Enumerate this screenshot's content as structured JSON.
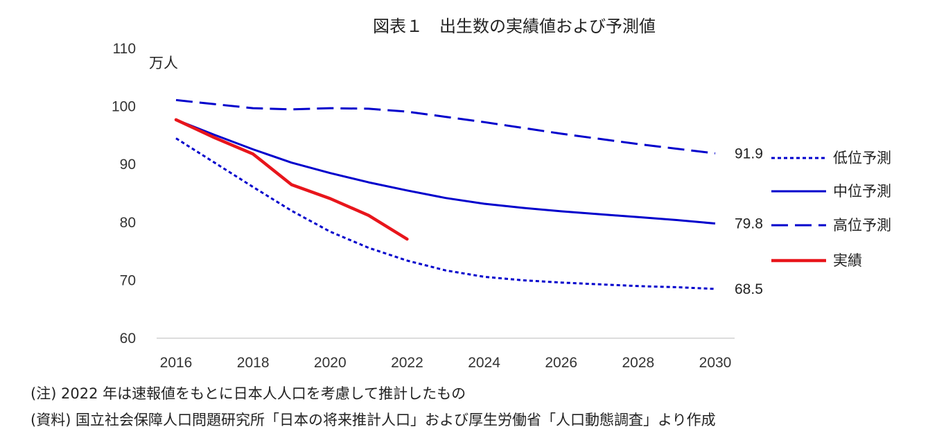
{
  "chart_data": {
    "type": "line",
    "title": "図表１　出生数の実績値および予測値",
    "unit_label": "万人",
    "ylim": [
      60,
      110
    ],
    "yticks": [
      60,
      70,
      80,
      90,
      100,
      110
    ],
    "xlim": [
      2016,
      2030
    ],
    "xticks": [
      2016,
      2018,
      2020,
      2022,
      2024,
      2026,
      2028,
      2030
    ],
    "grid": false,
    "legend_position": "right",
    "series": [
      {
        "name": "低位予測",
        "color": "#0000cc",
        "style": "dotted",
        "points": [
          [
            2016,
            94.5
          ],
          [
            2017,
            90.3
          ],
          [
            2018,
            86.1
          ],
          [
            2019,
            82.0
          ],
          [
            2020,
            78.4
          ],
          [
            2021,
            75.6
          ],
          [
            2022,
            73.4
          ],
          [
            2023,
            71.7
          ],
          [
            2024,
            70.6
          ],
          [
            2025,
            70.0
          ],
          [
            2026,
            69.6
          ],
          [
            2027,
            69.3
          ],
          [
            2028,
            69.0
          ],
          [
            2029,
            68.8
          ],
          [
            2030,
            68.5
          ]
        ],
        "end_label": "68.5"
      },
      {
        "name": "中位予測",
        "color": "#0000cc",
        "style": "solid",
        "points": [
          [
            2016,
            97.7
          ],
          [
            2017,
            95.1
          ],
          [
            2018,
            92.6
          ],
          [
            2019,
            90.3
          ],
          [
            2020,
            88.5
          ],
          [
            2021,
            86.9
          ],
          [
            2022,
            85.5
          ],
          [
            2023,
            84.2
          ],
          [
            2024,
            83.2
          ],
          [
            2025,
            82.5
          ],
          [
            2026,
            81.9
          ],
          [
            2027,
            81.4
          ],
          [
            2028,
            80.9
          ],
          [
            2029,
            80.4
          ],
          [
            2030,
            79.8
          ]
        ],
        "end_label": "79.8"
      },
      {
        "name": "高位予測",
        "color": "#0000cc",
        "style": "dashed",
        "points": [
          [
            2016,
            101.1
          ],
          [
            2017,
            100.4
          ],
          [
            2018,
            99.7
          ],
          [
            2019,
            99.5
          ],
          [
            2020,
            99.7
          ],
          [
            2021,
            99.6
          ],
          [
            2022,
            99.1
          ],
          [
            2023,
            98.2
          ],
          [
            2024,
            97.3
          ],
          [
            2025,
            96.3
          ],
          [
            2026,
            95.3
          ],
          [
            2027,
            94.4
          ],
          [
            2028,
            93.5
          ],
          [
            2029,
            92.7
          ],
          [
            2030,
            91.9
          ]
        ],
        "end_label": "91.9"
      },
      {
        "name": "実績",
        "color": "#e8151b",
        "style": "solid-thick",
        "points": [
          [
            2016,
            97.7
          ],
          [
            2017,
            94.6
          ],
          [
            2018,
            91.8
          ],
          [
            2019,
            86.5
          ],
          [
            2020,
            84.1
          ],
          [
            2021,
            81.2
          ],
          [
            2022,
            77.1
          ]
        ]
      }
    ]
  },
  "notes": {
    "note1": "(注) 2022 年は速報値をもとに日本人人口を考慮して推計したもの",
    "note2": "(資料) 国立社会保障人口問題研究所「日本の将来推計人口」および厚生労働省「人口動態調査」より作成"
  }
}
